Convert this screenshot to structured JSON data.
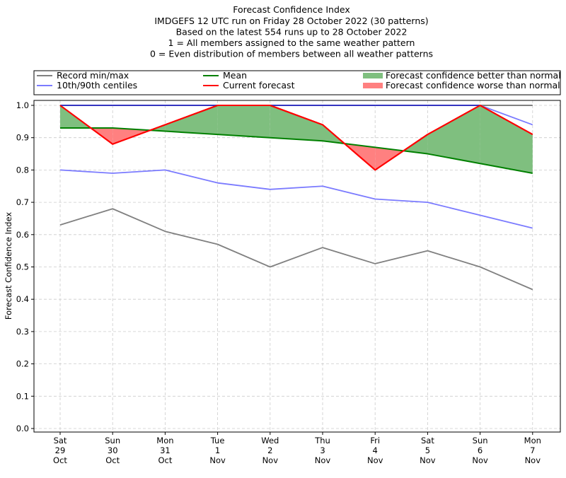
{
  "chart_data": {
    "type": "line",
    "title": "Forecast Confidence Index",
    "subtitle_lines": [
      "IMDGEFS 12 UTC run on Friday 28 October 2022 (30 patterns)",
      "Based on the latest 554 runs up to 28 October 2022",
      "1 = All members assigned to the same weather pattern",
      "0 = Even distribution of members between all weather patterns"
    ],
    "xlabel": "",
    "ylabel": "Forecast Confidence Index",
    "ylim": [
      0.0,
      1.0
    ],
    "yticks": [
      "0.0",
      "0.1",
      "0.2",
      "0.3",
      "0.4",
      "0.5",
      "0.6",
      "0.7",
      "0.8",
      "0.9",
      "1.0"
    ],
    "categories": [
      [
        "Sat",
        "29",
        "Oct"
      ],
      [
        "Sun",
        "30",
        "Oct"
      ],
      [
        "Mon",
        "31",
        "Oct"
      ],
      [
        "Tue",
        "1",
        "Nov"
      ],
      [
        "Wed",
        "2",
        "Nov"
      ],
      [
        "Thu",
        "3",
        "Nov"
      ],
      [
        "Fri",
        "4",
        "Nov"
      ],
      [
        "Sat",
        "5",
        "Nov"
      ],
      [
        "Sun",
        "6",
        "Nov"
      ],
      [
        "Mon",
        "7",
        "Nov"
      ]
    ],
    "grid": true,
    "legend_position": "top (above plot, full width)",
    "series": [
      {
        "name": "Record max",
        "legend_group": "Record min/max",
        "color": "#808080",
        "values": [
          1.0,
          1.0,
          1.0,
          1.0,
          1.0,
          1.0,
          1.0,
          1.0,
          1.0,
          1.0
        ]
      },
      {
        "name": "Record min",
        "legend_group": "Record min/max",
        "color": "#808080",
        "values": [
          0.63,
          0.68,
          0.61,
          0.57,
          0.5,
          0.56,
          0.51,
          0.55,
          0.5,
          0.43
        ]
      },
      {
        "name": "90th centile",
        "legend_group": "10th/90th centiles",
        "color": "#7b7bff",
        "values": [
          1.0,
          1.0,
          1.0,
          1.0,
          1.0,
          1.0,
          1.0,
          1.0,
          1.0,
          0.94
        ]
      },
      {
        "name": "10th centile",
        "legend_group": "10th/90th centiles",
        "color": "#7b7bff",
        "values": [
          0.8,
          0.79,
          0.8,
          0.76,
          0.74,
          0.75,
          0.71,
          0.7,
          0.66,
          0.62
        ]
      },
      {
        "name": "Mean",
        "legend_group": "Mean",
        "color": "#008000",
        "values": [
          0.93,
          0.93,
          0.92,
          0.91,
          0.9,
          0.89,
          0.87,
          0.85,
          0.82,
          0.79
        ]
      },
      {
        "name": "Current forecast",
        "legend_group": "Current forecast",
        "color": "#ff0000",
        "values": [
          1.0,
          0.88,
          0.94,
          1.0,
          1.0,
          0.94,
          0.8,
          0.91,
          1.0,
          0.91
        ]
      }
    ],
    "fills": {
      "better": {
        "label": "Forecast confidence better than normal",
        "color": "#7fbf7f"
      },
      "worse": {
        "label": "Forecast confidence worse than normal",
        "color": "#ff8080"
      }
    },
    "legend": [
      {
        "label": "Record min/max",
        "kind": "line",
        "color": "#808080"
      },
      {
        "label": "10th/90th centiles",
        "kind": "line",
        "color": "#7b7bff"
      },
      {
        "label": "Mean",
        "kind": "line",
        "color": "#008000"
      },
      {
        "label": "Current forecast",
        "kind": "line",
        "color": "#ff0000"
      },
      {
        "label": "Forecast confidence better than normal",
        "kind": "patch",
        "color": "#7fbf7f"
      },
      {
        "label": "Forecast confidence worse than normal",
        "kind": "patch",
        "color": "#ff8080"
      }
    ]
  }
}
